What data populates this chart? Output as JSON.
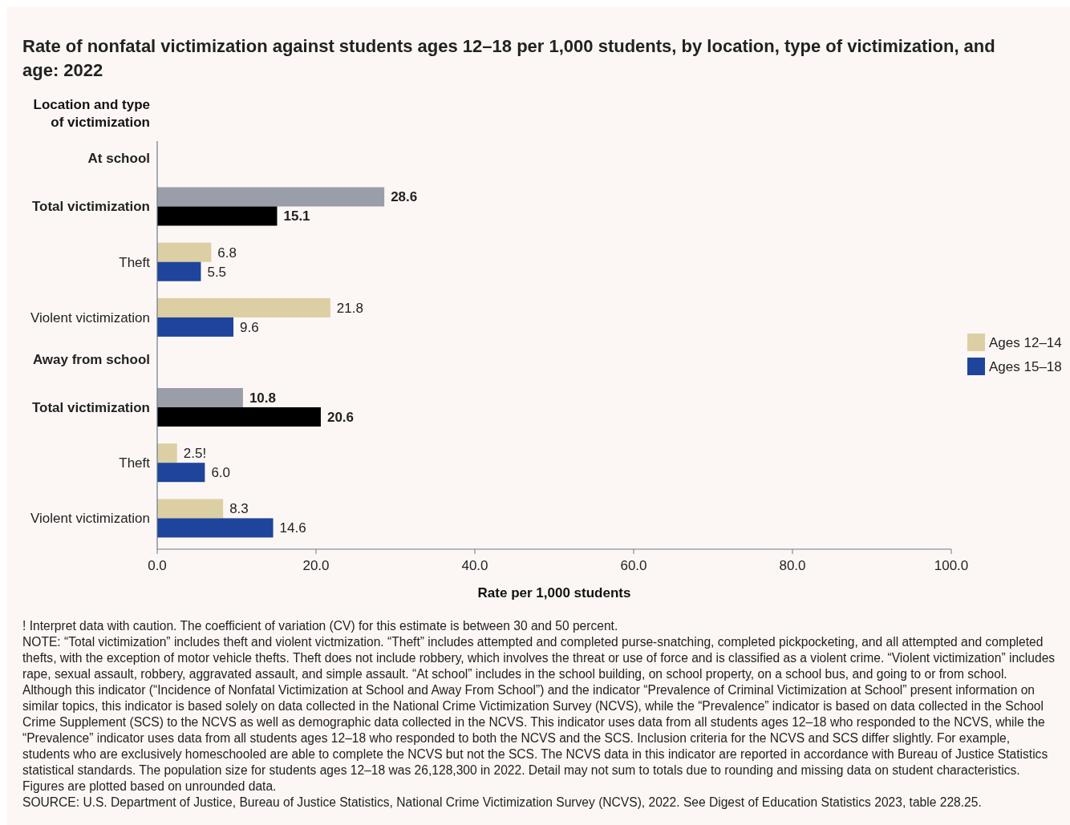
{
  "chart_data": {
    "type": "bar",
    "orientation": "horizontal",
    "title": "Rate of nonfatal victimization against students ages 12–18 per 1,000 students, by location, type of victimization, and age: 2022",
    "ylabel": "Location and type of victimization",
    "xlabel": "Rate per 1,000 students",
    "categories": [
      "At school",
      "Total victimization",
      "Theft",
      "Violent victimization",
      "Away from school",
      "Total victimization",
      "Theft",
      "Violent victimization"
    ],
    "series": [
      {
        "name": "Ages 12–14",
        "color": "#dccfa3",
        "colors": [
          null,
          "#9a9ea8",
          "#dccfa3",
          "#dccfa3",
          null,
          "#9a9ea8",
          "#dccfa3",
          "#dccfa3"
        ],
        "values": [
          null,
          28.6,
          6.8,
          21.8,
          null,
          10.8,
          2.5,
          8.3
        ],
        "value_labels": [
          null,
          "28.6",
          "6.8",
          "21.8",
          null,
          "10.8",
          "2.5!",
          "8.3"
        ]
      },
      {
        "name": "Ages 15–18",
        "color": "#1f449b",
        "colors": [
          null,
          "#000000",
          "#1f449b",
          "#1f449b",
          null,
          "#000000",
          "#1f449b",
          "#1f449b"
        ],
        "values": [
          null,
          15.1,
          5.5,
          9.6,
          null,
          20.6,
          6.0,
          14.6
        ],
        "value_labels": [
          null,
          "15.1",
          "5.5",
          "9.6",
          null,
          "20.6",
          "6.0",
          "14.6"
        ]
      }
    ],
    "xlim": [
      0,
      100
    ],
    "xticks": [
      {
        "value": 0,
        "label": "0.0"
      },
      {
        "value": 20,
        "label": "20.0"
      },
      {
        "value": 40,
        "label": "40.0"
      },
      {
        "value": 60,
        "label": "60.0"
      },
      {
        "value": 80,
        "label": "80.0"
      },
      {
        "value": 100,
        "label": "100.0"
      }
    ],
    "grid": false,
    "legend": "right",
    "annotations": [
      "! Interpret data with caution. The coefficient of variation (CV) for this estimate is between 30 and 50 percent.",
      "NOTE: “Total victimization” includes theft and violent victmization. “Theft” includes attempted and completed purse-snatching, completed pickpocketing, and all attempted and completed thefts, with the exception of motor vehicle thefts. Theft does not include robbery, which involves the threat or use of force and is classified as a violent crime. “Violent victimization” includes rape, sexual assault, robbery, aggravated assault, and simple assault. “At school” includes in the school building, on school property, on a school bus, and going to or from school. Although this indicator (“Incidence of Nonfatal Victimization at School and Away From School”) and the indicator “Prevalence of Criminal Victimization at School” present information on similar topics, this indicator is based solely on data collected in the National Crime Victimization Survey (NCVS), while the “Prevalence” indicator is based on data collected in the School Crime Supplement (SCS) to the NCVS as well as demographic data collected in the NCVS. This indicator uses data from all students ages 12–18 who responded to the NCVS, while the “Prevalence” indicator uses data from all students ages 12–18 who responded to both the NCVS and the SCS. Inclusion criteria for the NCVS and SCS differ slightly. For example, students who are exclusively homeschooled are able to complete the NCVS but not the SCS. The NCVS data in this indicator are reported in accordance with Bureau of Justice Statistics statistical standards. The population size for students ages 12–18 was 26,128,300 in 2022. Detail may not sum to totals due to rounding and missing data on student characteristics. Figures are plotted based on unrounded data.",
      "SOURCE: U.S. Department of Justice, Bureau of Justice Statistics, National Crime Victimization Survey (NCVS), 2022. See Digest of Education Statistics 2023, table 228.25."
    ]
  }
}
